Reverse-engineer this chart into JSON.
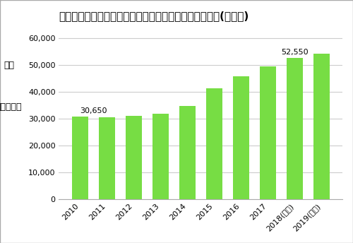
{
  "title": "【グラフ１】日本のたんぱく質・アミノ酸市場規模推移(販売高)",
  "ylabel_line1": "単位",
  "ylabel_line2": "（百万円）",
  "categories": [
    "2010",
    "2011",
    "2012",
    "2013",
    "2014",
    "2015",
    "2016",
    "2017",
    "2018(見込)",
    "2019(予測)"
  ],
  "values": [
    30650,
    30400,
    31100,
    31800,
    34800,
    41200,
    45700,
    49500,
    52550,
    54300
  ],
  "bar_color": "#77DD44",
  "annotation_2010": "30,650",
  "annotation_2018": "52,550",
  "annotation_2010_idx": 0,
  "annotation_2018_idx": 8,
  "ylim": [
    0,
    65000
  ],
  "yticks": [
    0,
    10000,
    20000,
    30000,
    40000,
    50000,
    60000
  ],
  "background_color": "#ffffff",
  "border_color": "#aaaaaa",
  "grid_color": "#cccccc",
  "title_fontsize": 11,
  "tick_fontsize": 8,
  "label_fontsize": 8,
  "ylabel_fontsize": 9
}
